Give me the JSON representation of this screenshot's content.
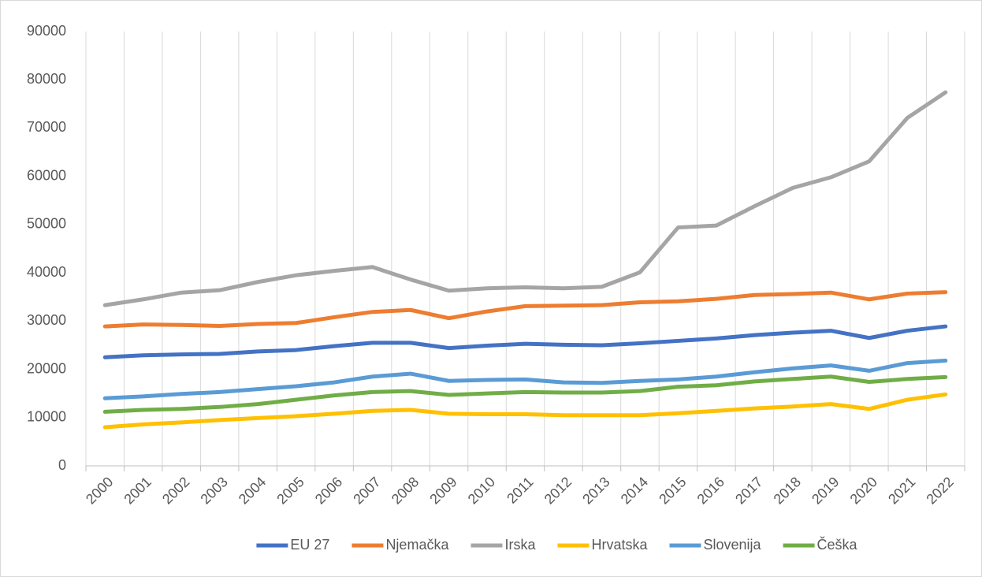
{
  "chart_data": {
    "type": "line",
    "categories": [
      "2000",
      "2001",
      "2002",
      "2003",
      "2004",
      "2005",
      "2006",
      "2007",
      "2008",
      "2009",
      "2010",
      "2011",
      "2012",
      "2013",
      "2014",
      "2015",
      "2016",
      "2017",
      "2018",
      "2019",
      "2020",
      "2021",
      "2022"
    ],
    "series": [
      {
        "name": "EU 27",
        "color": "#4472c4",
        "values": [
          22500,
          22900,
          23100,
          23200,
          23700,
          24000,
          24800,
          25500,
          25500,
          24400,
          24900,
          25300,
          25100,
          25000,
          25400,
          25900,
          26400,
          27100,
          27600,
          28000,
          26500,
          28000,
          28900
        ]
      },
      {
        "name": "Njemačka",
        "color": "#ed7d31",
        "values": [
          28900,
          29300,
          29200,
          29000,
          29400,
          29600,
          30800,
          31900,
          32300,
          30600,
          32000,
          33100,
          33200,
          33300,
          33900,
          34100,
          34600,
          35400,
          35600,
          35900,
          34500,
          35700,
          36000
        ]
      },
      {
        "name": "Irska",
        "color": "#a5a5a5",
        "values": [
          33300,
          34500,
          35900,
          36400,
          38100,
          39500,
          40400,
          41200,
          38600,
          36300,
          36800,
          37000,
          36800,
          37100,
          40100,
          49400,
          49800,
          53800,
          57600,
          59800,
          63100,
          72100,
          77400
        ]
      },
      {
        "name": "Hrvatska",
        "color": "#ffc000",
        "values": [
          8000,
          8600,
          9000,
          9500,
          9900,
          10300,
          10800,
          11400,
          11600,
          10800,
          10700,
          10700,
          10500,
          10500,
          10500,
          10900,
          11400,
          11900,
          12300,
          12800,
          11800,
          13700,
          14800
        ]
      },
      {
        "name": "Slovenija",
        "color": "#5b9bd5",
        "values": [
          14000,
          14400,
          14900,
          15300,
          15900,
          16500,
          17300,
          18500,
          19100,
          17600,
          17800,
          17900,
          17300,
          17200,
          17600,
          17900,
          18500,
          19400,
          20200,
          20800,
          19700,
          21300,
          21800
        ]
      },
      {
        "name": "Češka",
        "color": "#70ad47",
        "values": [
          11200,
          11600,
          11800,
          12200,
          12800,
          13700,
          14600,
          15300,
          15500,
          14700,
          15000,
          15300,
          15200,
          15200,
          15500,
          16400,
          16700,
          17500,
          18000,
          18500,
          17400,
          18000,
          18400
        ]
      }
    ],
    "ylim": [
      0,
      90000
    ],
    "yticks": [
      0,
      10000,
      20000,
      30000,
      40000,
      50000,
      60000,
      70000,
      80000,
      90000
    ],
    "grid": true,
    "legend": "bottom"
  }
}
